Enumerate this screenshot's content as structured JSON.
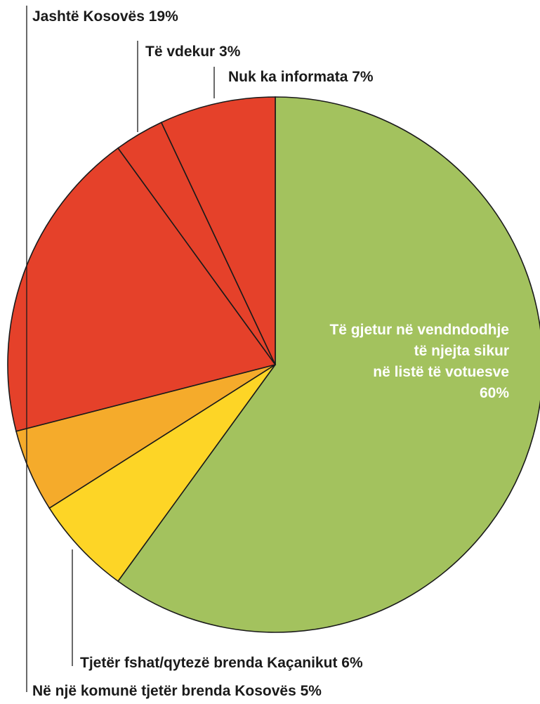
{
  "chart_data": {
    "type": "pie",
    "slices": [
      {
        "label": "Të gjetur në vendndodhje",
        "label_lines": [
          "Të gjetur në vendndodhje",
          "të njejta sikur",
          "në listë të votuesve",
          "60%"
        ],
        "value": 60,
        "color": "#a3c25e"
      },
      {
        "label": "Tjetër fshat/qytezë brenda Kaçanikut 6%",
        "value": 6,
        "color": "#fdd526"
      },
      {
        "label": "Në një komunë tjetër brenda Kosovës 5%",
        "value": 5,
        "color": "#f5ab2b"
      },
      {
        "label": "Jashtë Kosovës 19%",
        "value": 19,
        "color": "#e5412a"
      },
      {
        "label": "Të vdekur 3%",
        "value": 3,
        "color": "#e5412a"
      },
      {
        "label": "Nuk ka informata 7%",
        "value": 7,
        "color": "#e5412a"
      }
    ]
  }
}
